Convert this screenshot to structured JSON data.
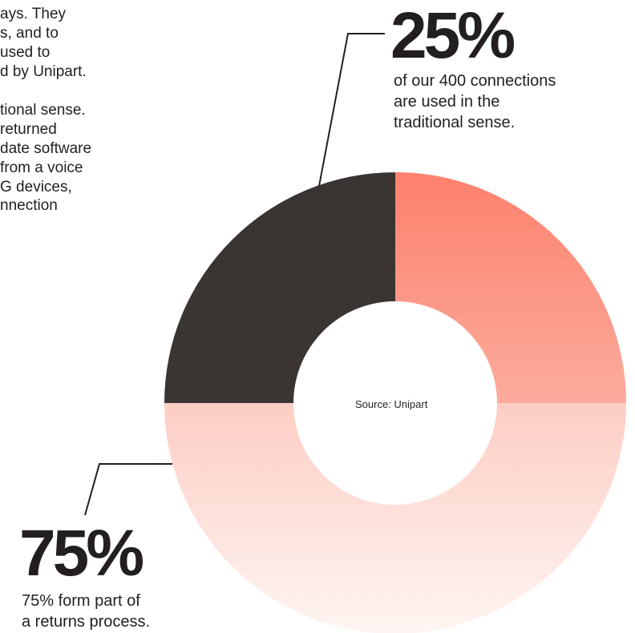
{
  "body_text": {
    "paragraph_1": [
      "ays. They",
      "s, and to",
      "used to",
      "d by Unipart."
    ],
    "paragraph_2": [
      "tional sense.",
      "returned",
      "date software",
      "from a voice",
      "G devices,",
      "nnection"
    ]
  },
  "chart_data": {
    "type": "pie",
    "donut": true,
    "slices": [
      {
        "label": "75%",
        "value": 75,
        "caption": [
          "75% form part of",
          "a returns process."
        ],
        "color_top": "#fba696",
        "color_bottom": "#fef5f2"
      },
      {
        "label": "25%",
        "value": 25,
        "caption": [
          "of our 400 connections",
          "are used in the",
          "traditional sense."
        ],
        "color": "#3a3433"
      }
    ],
    "accent_color": "#fe7a66",
    "center_text": "Source: Unipart"
  }
}
